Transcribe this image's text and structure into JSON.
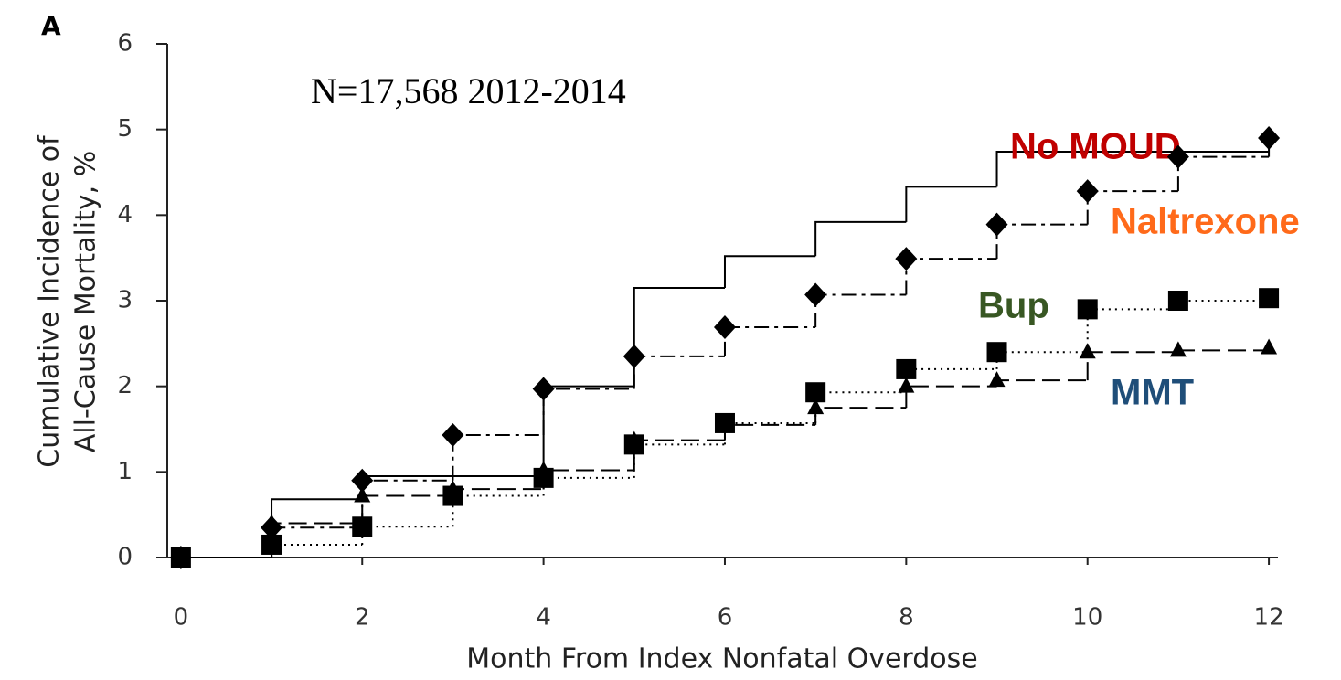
{
  "chart_data": {
    "type": "step",
    "panel_label": "A",
    "annotation": "N=17,568  2012-2014",
    "x_label": "Month From Index Nonfatal Overdose",
    "y_label": [
      "Cumulative Incidence of",
      "All-Cause Mortality, %"
    ],
    "x": [
      0,
      1,
      2,
      3,
      4,
      5,
      6,
      7,
      8,
      9,
      10,
      11,
      12
    ],
    "xlim": [
      -0.15,
      12.1
    ],
    "xticks": [
      0,
      2,
      4,
      6,
      8,
      10,
      12
    ],
    "ylim": [
      0,
      6
    ],
    "yticks": [
      0,
      1,
      2,
      3,
      4,
      5,
      6
    ],
    "series": [
      {
        "name": "No MOUD",
        "color": "#000000",
        "label_color": "#c00000",
        "line_style": "solid",
        "marker": "none",
        "values": [
          0,
          0.68,
          0.95,
          0.95,
          2.0,
          3.15,
          3.52,
          3.92,
          4.33,
          4.74,
          4.74,
          4.74,
          4.74
        ]
      },
      {
        "name": "Naltrexone",
        "color": "#000000",
        "label_color": "#ff6a1a",
        "line_style": "dashdot",
        "marker": "diamond",
        "values": [
          0,
          0.35,
          0.9,
          1.43,
          1.97,
          2.35,
          2.69,
          3.07,
          3.49,
          3.89,
          4.28,
          4.68,
          4.9
        ]
      },
      {
        "name": "Bup",
        "color": "#000000",
        "label_color": "#385723",
        "line_style": "dotted",
        "marker": "square",
        "values": [
          0,
          0.15,
          0.36,
          0.72,
          0.93,
          1.32,
          1.57,
          1.93,
          2.2,
          2.4,
          2.9,
          3.0,
          3.03
        ]
      },
      {
        "name": "MMT",
        "color": "#000000",
        "label_color": "#1f4e79",
        "line_style": "dashed",
        "marker": "triangle",
        "values": [
          0,
          0.4,
          0.72,
          0.8,
          1.02,
          1.37,
          1.55,
          1.75,
          2.0,
          2.07,
          2.4,
          2.42,
          2.45
        ]
      }
    ]
  }
}
